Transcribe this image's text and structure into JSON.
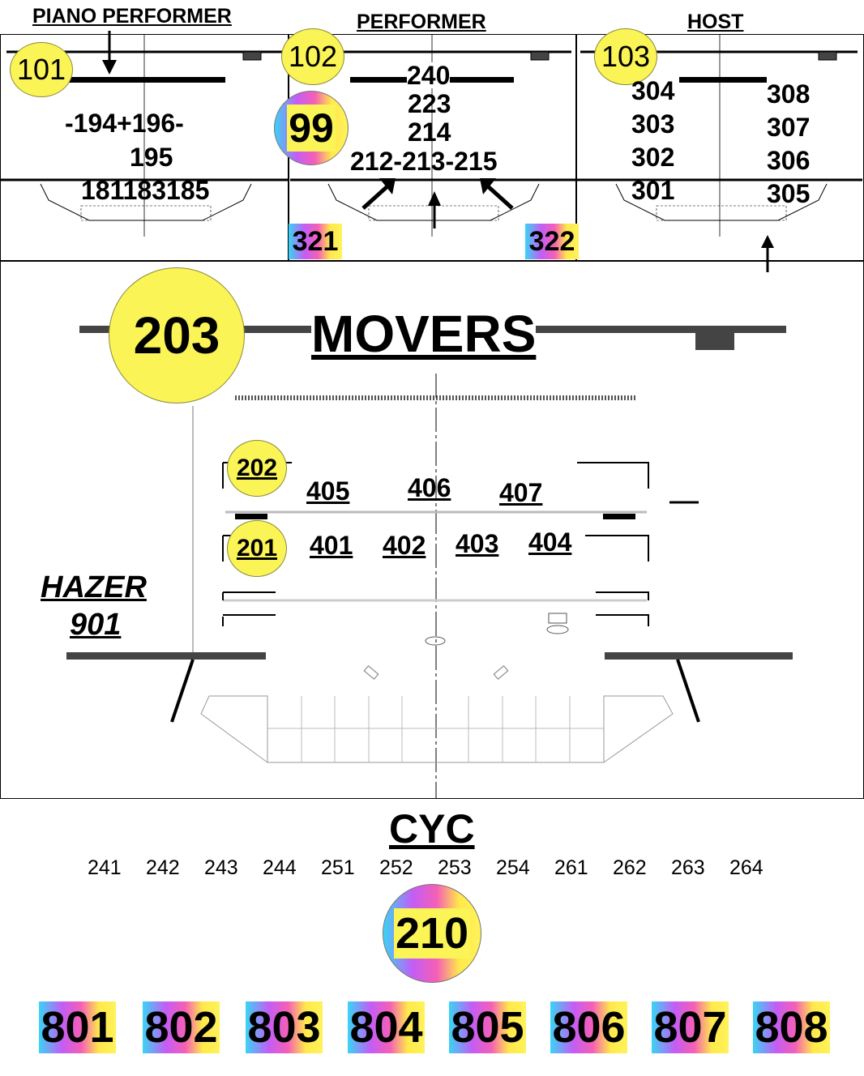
{
  "headers": {
    "piano_performer": "PIANO PERFORMER",
    "performer": "PERFORMER",
    "host": "HOST"
  },
  "panel_piano": {
    "circle": "101",
    "labels": {
      "row1": "-194+196-",
      "row2": "195",
      "row3": "181183185"
    }
  },
  "panel_performer": {
    "circle": "102",
    "gradient_circle": "99",
    "labels": {
      "top": "240",
      "l223": "223",
      "l214": "214",
      "bottom": "212-213-215"
    },
    "tags": [
      "321",
      "322"
    ]
  },
  "panel_host": {
    "circle": "103",
    "left": [
      "304",
      "303",
      "302",
      "301"
    ],
    "right": [
      "308",
      "307",
      "306",
      "305"
    ]
  },
  "movers": {
    "circle": "203",
    "title": "MOVERS",
    "upper_circle": "202",
    "lower_circle": "201",
    "upper_row": [
      "405",
      "406",
      "407"
    ],
    "lower_row": [
      "401",
      "402",
      "403",
      "404"
    ],
    "hazer_label": "HAZER",
    "hazer_number": "901"
  },
  "cyc": {
    "title": "CYC",
    "channels": [
      "241",
      "242",
      "243",
      "244",
      "251",
      "252",
      "253",
      "254",
      "261",
      "262",
      "263",
      "264"
    ],
    "circle": "210",
    "boxes": [
      "801",
      "802",
      "803",
      "804",
      "805",
      "806",
      "807",
      "808"
    ]
  },
  "colors": {
    "yellow": "#fbf456",
    "gradient": [
      "#39d4f5",
      "#c35df5",
      "#f55fb6",
      "#ffe94a"
    ]
  }
}
